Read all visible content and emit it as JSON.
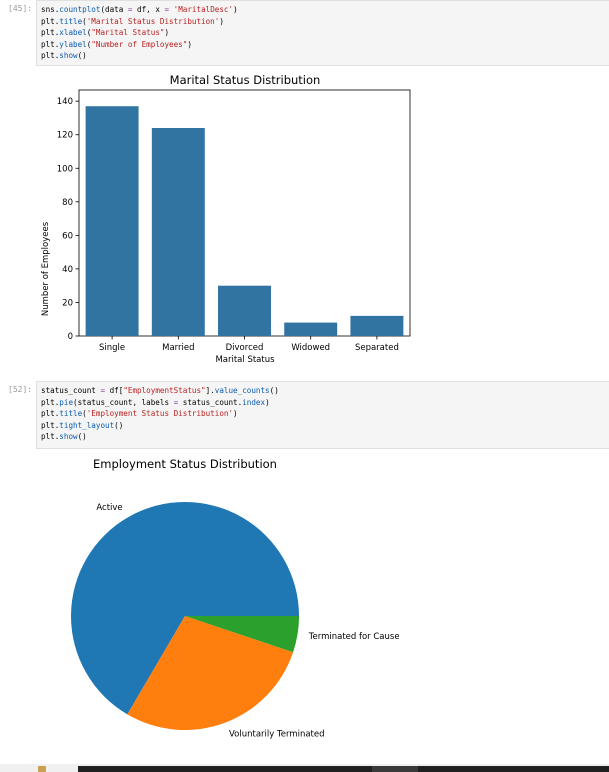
{
  "cells": [
    {
      "prompt": "[45]:",
      "lines": [
        [
          [
            "sns.",
            "t"
          ],
          [
            "countplot",
            "fn"
          ],
          [
            "(data ",
            "t"
          ],
          [
            "=",
            "op"
          ],
          [
            " df, x ",
            "t"
          ],
          [
            "=",
            "op"
          ],
          [
            " ",
            "t"
          ],
          [
            "'MaritalDesc'",
            "str"
          ],
          [
            ")",
            "t"
          ]
        ],
        [
          [
            "plt.",
            "t"
          ],
          [
            "title",
            "fn"
          ],
          [
            "(",
            "t"
          ],
          [
            "'Marital Status Distribution'",
            "str"
          ],
          [
            ")",
            "t"
          ]
        ],
        [
          [
            "plt.",
            "t"
          ],
          [
            "xlabel",
            "fn"
          ],
          [
            "(",
            "t"
          ],
          [
            "\"Marital Status\"",
            "str"
          ],
          [
            ")",
            "t"
          ]
        ],
        [
          [
            "plt.",
            "t"
          ],
          [
            "ylabel",
            "fn"
          ],
          [
            "(",
            "t"
          ],
          [
            "\"Number of Employees\"",
            "str"
          ],
          [
            ")",
            "t"
          ]
        ],
        [
          [
            "plt.",
            "t"
          ],
          [
            "show",
            "fn"
          ],
          [
            "()",
            "t"
          ]
        ]
      ]
    },
    {
      "prompt": "[52]:",
      "lines": [
        [
          [
            "status_count ",
            "t"
          ],
          [
            "=",
            "op"
          ],
          [
            " df[",
            "t"
          ],
          [
            "\"EmploymentStatus\"",
            "str"
          ],
          [
            "].",
            "t"
          ],
          [
            "value_counts",
            "fn"
          ],
          [
            "()",
            "t"
          ]
        ],
        [
          [
            "plt.",
            "t"
          ],
          [
            "pie",
            "fn"
          ],
          [
            "(status_count, labels ",
            "t"
          ],
          [
            "=",
            "op"
          ],
          [
            " status_count.",
            "t"
          ],
          [
            "index",
            "fn"
          ],
          [
            ")",
            "t"
          ]
        ],
        [
          [
            "plt.",
            "t"
          ],
          [
            "title",
            "fn"
          ],
          [
            "(",
            "t"
          ],
          [
            "'Employment Status Distribution'",
            "str"
          ],
          [
            ")",
            "t"
          ]
        ],
        [
          [
            "plt.",
            "t"
          ],
          [
            "tight_layout",
            "fn"
          ],
          [
            "()",
            "t"
          ]
        ],
        [
          [
            "plt.",
            "t"
          ],
          [
            "show",
            "fn"
          ],
          [
            "()",
            "t"
          ]
        ]
      ]
    }
  ],
  "chart_data": [
    {
      "type": "bar",
      "title": "Marital Status Distribution",
      "xlabel": "Marital Status",
      "ylabel": "Number of Employees",
      "categories": [
        "Single",
        "Married",
        "Divorced",
        "Widowed",
        "Separated"
      ],
      "values": [
        137,
        124,
        30,
        8,
        12
      ],
      "ylim": [
        0,
        140
      ],
      "yticks": [
        0,
        20,
        40,
        60,
        80,
        100,
        120,
        140
      ],
      "color": "#3274a1",
      "grid": false
    },
    {
      "type": "pie",
      "title": "Employment Status Distribution",
      "labels": [
        "Active",
        "Voluntarily Terminated",
        "Terminated for Cause"
      ],
      "values": [
        207,
        88,
        16
      ],
      "colors": [
        "#1f77b4",
        "#ff7f0e",
        "#2ca02c"
      ]
    }
  ],
  "colors": {
    "code_background": "#f5f5f5",
    "function": "#0b5cad",
    "string": "#ba2121",
    "operator": "#7a3e9d"
  }
}
